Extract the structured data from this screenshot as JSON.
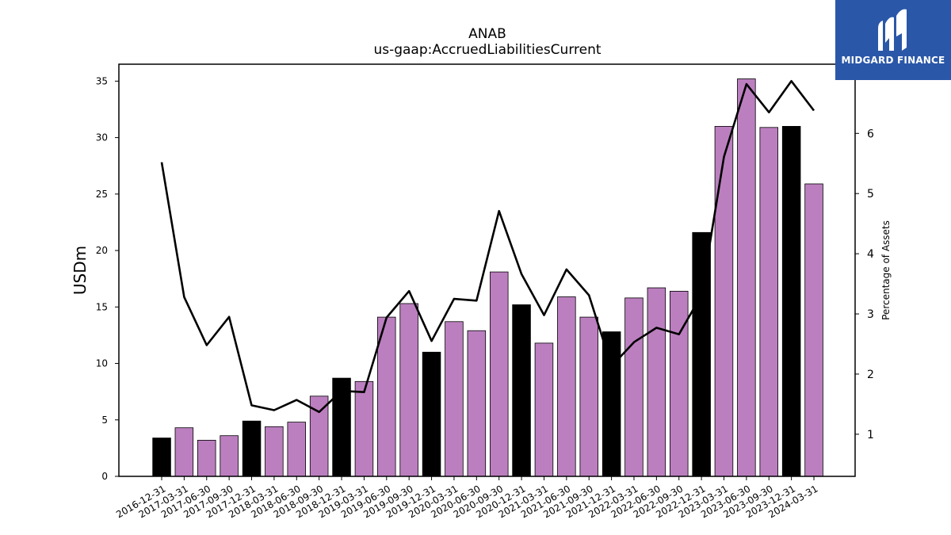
{
  "brand": {
    "name": "MIDGARD FINANCE",
    "bg": "#2a57a8",
    "fg": "#ffffff"
  },
  "chart_data": {
    "type": "bar",
    "title": "ANAB",
    "subtitle": "us-gaap:AccruedLiabilitiesCurrent",
    "ylabel": "USDm",
    "y2label": "Percentage of Assets",
    "ylim": [
      0,
      36.5
    ],
    "y2lim": [
      0.3,
      7.15
    ],
    "yticks": [
      0,
      5,
      10,
      15,
      20,
      25,
      30,
      35
    ],
    "y2ticks": [
      1,
      2,
      3,
      4,
      5,
      6
    ],
    "colors": {
      "quarter_bar": "#bb7fbf",
      "year_end_bar": "#000000",
      "line": "#000000"
    },
    "categories": [
      "2016-12-31",
      "2017-03-31",
      "2017-06-30",
      "2017-09-30",
      "2017-12-31",
      "2018-03-31",
      "2018-06-30",
      "2018-09-30",
      "2018-12-31",
      "2019-03-31",
      "2019-06-30",
      "2019-09-30",
      "2019-12-31",
      "2020-03-31",
      "2020-06-30",
      "2020-09-30",
      "2020-12-31",
      "2021-03-31",
      "2021-06-30",
      "2021-09-30",
      "2021-12-31",
      "2022-03-31",
      "2022-06-30",
      "2022-09-30",
      "2022-12-31",
      "2023-03-31",
      "2023-06-30",
      "2023-09-30",
      "2023-12-31",
      "2024-03-31"
    ],
    "series": [
      {
        "kind": "bar",
        "axis": "left",
        "values": [
          3.4,
          4.3,
          3.2,
          3.6,
          4.9,
          4.4,
          4.8,
          7.1,
          8.7,
          8.4,
          14.1,
          15.3,
          11.0,
          13.7,
          12.9,
          18.1,
          15.2,
          11.8,
          15.9,
          14.1,
          12.8,
          15.8,
          16.7,
          16.4,
          21.6,
          31.0,
          35.2,
          30.9,
          31.0,
          25.9
        ],
        "year_end": [
          true,
          false,
          false,
          false,
          true,
          false,
          false,
          false,
          true,
          false,
          false,
          false,
          true,
          false,
          false,
          false,
          true,
          false,
          false,
          false,
          true,
          false,
          false,
          false,
          true,
          false,
          false,
          false,
          true,
          false
        ]
      },
      {
        "kind": "line",
        "axis": "right",
        "values": [
          5.52,
          3.28,
          2.48,
          2.95,
          1.48,
          1.4,
          1.57,
          1.37,
          1.72,
          1.7,
          2.94,
          3.38,
          2.55,
          3.25,
          3.22,
          4.71,
          3.66,
          2.98,
          3.74,
          3.31,
          2.13,
          2.53,
          2.77,
          2.66,
          3.31,
          5.61,
          6.82,
          6.35,
          6.87,
          6.38
        ]
      }
    ]
  }
}
